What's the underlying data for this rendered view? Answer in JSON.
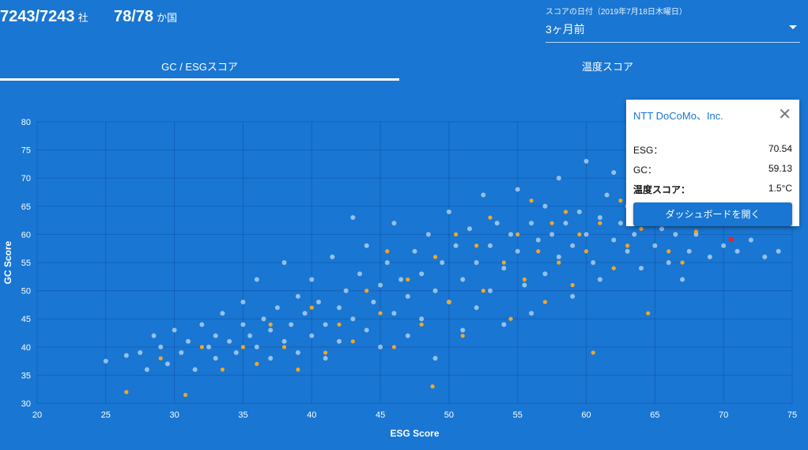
{
  "header": {
    "companies": "7243/7243",
    "companies_unit": "社",
    "countries": "78/78",
    "countries_unit": "か国"
  },
  "tabs": [
    {
      "label": "GC / ESGスコア",
      "active": true
    },
    {
      "label": "温度スコア",
      "active": false
    }
  ],
  "date_select": {
    "label": "スコアの日付（2019年7月18日木曜日）",
    "value": "3ヶ月前"
  },
  "popup": {
    "title": "NTT DoCoMo、Inc.",
    "rows": [
      {
        "k": "ESG：",
        "v": "70.54"
      },
      {
        "k": "GC：",
        "v": "59.13"
      },
      {
        "k": "温度スコア：",
        "v": "1.5°C"
      }
    ],
    "button": "ダッシュボードを開く",
    "close_icon": "close-icon"
  },
  "colors": {
    "background": "#1976d2",
    "points": "#ffffff",
    "highlight_series": "#f5a623",
    "selected": "#ff1a1a"
  },
  "chart_data": {
    "type": "scatter",
    "xlabel": "ESG Score",
    "ylabel": "GC Score",
    "xlim": [
      20,
      75
    ],
    "ylim": [
      30,
      80
    ],
    "xticks": [
      20,
      25,
      30,
      35,
      40,
      45,
      50,
      55,
      60,
      65,
      70,
      75
    ],
    "yticks": [
      30,
      35,
      40,
      45,
      50,
      55,
      60,
      65,
      70,
      75,
      80
    ],
    "grid": true,
    "series": [
      {
        "name": "all",
        "color": "#ffffff",
        "points": [
          [
            25,
            37.5
          ],
          [
            26.5,
            38.5
          ],
          [
            27.5,
            39
          ],
          [
            28,
            36
          ],
          [
            28.5,
            42
          ],
          [
            29,
            40
          ],
          [
            29.5,
            37
          ],
          [
            30,
            43
          ],
          [
            30.5,
            39
          ],
          [
            31,
            41
          ],
          [
            31.5,
            36
          ],
          [
            32,
            44
          ],
          [
            32.5,
            40
          ],
          [
            33,
            42
          ],
          [
            33,
            38
          ],
          [
            33.5,
            46
          ],
          [
            34,
            41
          ],
          [
            34.5,
            39
          ],
          [
            35,
            44
          ],
          [
            35,
            48
          ],
          [
            35.5,
            42
          ],
          [
            36,
            40
          ],
          [
            36,
            52
          ],
          [
            36.5,
            45
          ],
          [
            37,
            43
          ],
          [
            37,
            38
          ],
          [
            37.5,
            47
          ],
          [
            38,
            41
          ],
          [
            38,
            55
          ],
          [
            38.5,
            44
          ],
          [
            39,
            49
          ],
          [
            39,
            39
          ],
          [
            39.5,
            46
          ],
          [
            40,
            42
          ],
          [
            40,
            52
          ],
          [
            40.5,
            48
          ],
          [
            41,
            44
          ],
          [
            41,
            38
          ],
          [
            41.5,
            56
          ],
          [
            42,
            47
          ],
          [
            42,
            41
          ],
          [
            42.5,
            50
          ],
          [
            43,
            45
          ],
          [
            43,
            63
          ],
          [
            43.5,
            53
          ],
          [
            44,
            43
          ],
          [
            44,
            58
          ],
          [
            44.5,
            48
          ],
          [
            45,
            51
          ],
          [
            45,
            40
          ],
          [
            45.5,
            55
          ],
          [
            46,
            46
          ],
          [
            46,
            62
          ],
          [
            46.5,
            52
          ],
          [
            47,
            49
          ],
          [
            47,
            42
          ],
          [
            47.5,
            57
          ],
          [
            48,
            53
          ],
          [
            48,
            45
          ],
          [
            48.5,
            60
          ],
          [
            49,
            50
          ],
          [
            49,
            38
          ],
          [
            49.5,
            55
          ],
          [
            50,
            48
          ],
          [
            50,
            64
          ],
          [
            50.5,
            58
          ],
          [
            51,
            52
          ],
          [
            51,
            43
          ],
          [
            51.5,
            61
          ],
          [
            52,
            55
          ],
          [
            52,
            47
          ],
          [
            52.5,
            67
          ],
          [
            53,
            58
          ],
          [
            53,
            50
          ],
          [
            53.5,
            62
          ],
          [
            54,
            54
          ],
          [
            54,
            44
          ],
          [
            54.5,
            60
          ],
          [
            55,
            57
          ],
          [
            55,
            68
          ],
          [
            55.5,
            51
          ],
          [
            56,
            62
          ],
          [
            56,
            46
          ],
          [
            56.5,
            59
          ],
          [
            57,
            65
          ],
          [
            57,
            53
          ],
          [
            57.5,
            60
          ],
          [
            58,
            56
          ],
          [
            58,
            70
          ],
          [
            58.5,
            62
          ],
          [
            59,
            58
          ],
          [
            59,
            49
          ],
          [
            59.5,
            64
          ],
          [
            60,
            60
          ],
          [
            60,
            73
          ],
          [
            60.5,
            55
          ],
          [
            61,
            63
          ],
          [
            61,
            52
          ],
          [
            61.5,
            67
          ],
          [
            62,
            59
          ],
          [
            62,
            71
          ],
          [
            62.5,
            62
          ],
          [
            63,
            57
          ],
          [
            63,
            65
          ],
          [
            63.5,
            60
          ],
          [
            64,
            68
          ],
          [
            64,
            54
          ],
          [
            64.5,
            62
          ],
          [
            65,
            58
          ],
          [
            65,
            66
          ],
          [
            65.5,
            61
          ],
          [
            66,
            64
          ],
          [
            66,
            55
          ],
          [
            66.5,
            60
          ],
          [
            67,
            62
          ],
          [
            67,
            52
          ],
          [
            67.5,
            57
          ],
          [
            68,
            60
          ],
          [
            69,
            56
          ],
          [
            70,
            58
          ],
          [
            71,
            57
          ],
          [
            72,
            59
          ],
          [
            73,
            56
          ],
          [
            74,
            57
          ]
        ]
      },
      {
        "name": "highlighted",
        "color": "#f5a623",
        "points": [
          [
            26.5,
            32
          ],
          [
            30.8,
            31.5
          ],
          [
            29,
            38
          ],
          [
            32,
            40
          ],
          [
            33.5,
            36
          ],
          [
            35,
            40
          ],
          [
            36,
            37
          ],
          [
            37,
            44
          ],
          [
            38,
            40
          ],
          [
            39,
            36
          ],
          [
            40,
            47
          ],
          [
            41,
            39
          ],
          [
            42,
            44
          ],
          [
            43,
            41
          ],
          [
            44,
            50
          ],
          [
            45,
            46
          ],
          [
            45.5,
            57
          ],
          [
            46,
            40
          ],
          [
            47,
            52
          ],
          [
            48,
            44
          ],
          [
            48.8,
            33
          ],
          [
            49,
            56
          ],
          [
            50,
            48
          ],
          [
            50.5,
            60
          ],
          [
            51,
            42
          ],
          [
            52,
            58
          ],
          [
            52.5,
            50
          ],
          [
            53,
            63
          ],
          [
            54,
            55
          ],
          [
            54.5,
            45
          ],
          [
            55,
            60
          ],
          [
            55.5,
            52
          ],
          [
            56,
            66
          ],
          [
            56.5,
            57
          ],
          [
            57,
            48
          ],
          [
            57.5,
            62
          ],
          [
            58,
            55
          ],
          [
            58.5,
            64
          ],
          [
            59,
            51
          ],
          [
            59.5,
            60
          ],
          [
            60,
            57
          ],
          [
            60.5,
            39
          ],
          [
            61,
            62
          ],
          [
            62,
            54
          ],
          [
            62.5,
            66
          ],
          [
            63,
            58
          ],
          [
            64,
            61
          ],
          [
            64.5,
            46
          ],
          [
            65,
            63
          ],
          [
            66,
            57
          ],
          [
            67,
            55
          ],
          [
            68,
            60.5
          ]
        ]
      },
      {
        "name": "selected",
        "color": "#ff1a1a",
        "points": [
          [
            70.54,
            59.13
          ]
        ]
      }
    ]
  }
}
